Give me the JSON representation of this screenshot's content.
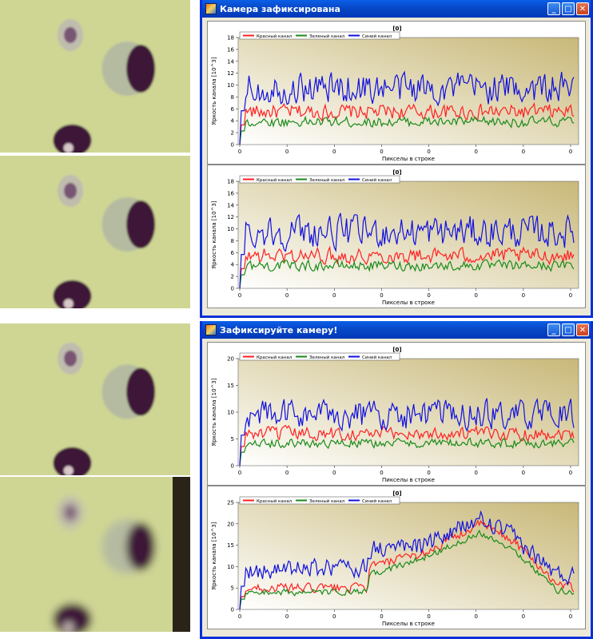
{
  "windows": [
    {
      "title": "Камера зафиксирована",
      "controls": {
        "minimize": "_",
        "maximize": "□",
        "close": "✕"
      },
      "charts": [
        {
          "title": "[0]",
          "ylabel": "Яркость канала [10^3]",
          "xlabel": "Пикселы в строке",
          "yticks": [
            "0",
            "2",
            "4",
            "6",
            "8",
            "10",
            "12",
            "14",
            "16",
            "18"
          ],
          "ylim": [
            0,
            18
          ],
          "xticks": [
            "0",
            "0",
            "0",
            "0",
            "0",
            "0",
            "0",
            "0"
          ]
        },
        {
          "title": "[0]",
          "ylabel": "Яркость канала [10^3]",
          "xlabel": "Пикселы в строке",
          "yticks": [
            "0",
            "2",
            "4",
            "6",
            "8",
            "10",
            "12",
            "14",
            "16",
            "18"
          ],
          "ylim": [
            0,
            18
          ],
          "xticks": [
            "0",
            "0",
            "0",
            "0",
            "0",
            "0",
            "0",
            "0"
          ]
        }
      ]
    },
    {
      "title": "Зафиксируйте камеру!",
      "controls": {
        "minimize": "_",
        "maximize": "□",
        "close": "✕"
      },
      "charts": [
        {
          "title": "[0]",
          "ylabel": "Яркость канала [10^3]",
          "xlabel": "Пикселы в строке",
          "yticks": [
            "0",
            "5",
            "10",
            "15",
            "20"
          ],
          "ylim": [
            0,
            20
          ],
          "xticks": [
            "0",
            "0",
            "0",
            "0",
            "0",
            "0",
            "0",
            "0"
          ]
        },
        {
          "title": "[0]",
          "ylabel": "Яркость канала [10^3]",
          "xlabel": "Пикселы в строке",
          "yticks": [
            "0",
            "5",
            "10",
            "15",
            "20",
            "25"
          ],
          "ylim": [
            0,
            25
          ],
          "xticks": [
            "0",
            "0",
            "0",
            "0",
            "0",
            "0",
            "0",
            "0"
          ]
        }
      ]
    }
  ],
  "legend": {
    "red": "Красный канал",
    "green": "Зеленый канал",
    "blue": "Синий канал"
  },
  "colors": {
    "red": "#ff2020",
    "green": "#1a8a1a",
    "blue": "#1010e0",
    "titlebar": "#0a5fe8",
    "photo_bg": "#cfd694"
  },
  "chart_data": [
    {
      "type": "line",
      "title": "[0]",
      "ylabel": "Яркость канала [10^3]",
      "xlabel": "Пикселы в строке",
      "ylim": [
        0,
        18
      ],
      "series": [
        {
          "name": "Красный канал",
          "level": 5.5,
          "noise": 1.2
        },
        {
          "name": "Зеленый канал",
          "level": 3.8,
          "noise": 0.8
        },
        {
          "name": "Синий канал",
          "level": 9.5,
          "noise": 2.5
        }
      ]
    },
    {
      "type": "line",
      "title": "[0]",
      "ylabel": "Яркость канала [10^3]",
      "xlabel": "Пикселы в строке",
      "ylim": [
        0,
        18
      ],
      "series": [
        {
          "name": "Красный канал",
          "level": 5.5,
          "noise": 1.2
        },
        {
          "name": "Зеленый канал",
          "level": 3.8,
          "noise": 0.8
        },
        {
          "name": "Синий канал",
          "level": 9.5,
          "noise": 2.5
        }
      ]
    },
    {
      "type": "line",
      "title": "[0]",
      "ylabel": "Яркость канала [10^3]",
      "xlabel": "Пикселы в строке",
      "ylim": [
        0,
        20
      ],
      "series": [
        {
          "name": "Красный канал",
          "level": 6,
          "noise": 1.2
        },
        {
          "name": "Зеленый канал",
          "level": 4.2,
          "noise": 0.8
        },
        {
          "name": "Синий канал",
          "level": 9.5,
          "noise": 2.5
        }
      ]
    },
    {
      "type": "line",
      "title": "[0]",
      "ylabel": "Яркость канала [10^3]",
      "xlabel": "Пикселы в строке",
      "ylim": [
        0,
        25
      ],
      "series": [
        {
          "name": "Красный канал",
          "profile": [
            [
              0,
              5
            ],
            [
              0.38,
              5
            ],
            [
              0.39,
              10
            ],
            [
              0.55,
              13
            ],
            [
              0.72,
              20
            ],
            [
              0.82,
              16
            ],
            [
              0.95,
              6
            ],
            [
              1,
              5
            ]
          ],
          "noise": 1.0
        },
        {
          "name": "Зеленый канал",
          "profile": [
            [
              0,
              4
            ],
            [
              0.38,
              4
            ],
            [
              0.39,
              8
            ],
            [
              0.55,
              12
            ],
            [
              0.72,
              18
            ],
            [
              0.82,
              14
            ],
            [
              0.95,
              4.5
            ],
            [
              1,
              4
            ]
          ],
          "noise": 0.7
        },
        {
          "name": "Синий канал",
          "profile": [
            [
              0,
              9
            ],
            [
              0.38,
              10
            ],
            [
              0.39,
              14
            ],
            [
              0.55,
              15
            ],
            [
              0.72,
              21
            ],
            [
              0.82,
              17
            ],
            [
              0.95,
              8
            ],
            [
              1,
              8
            ]
          ],
          "noise": 2.0
        }
      ]
    }
  ]
}
